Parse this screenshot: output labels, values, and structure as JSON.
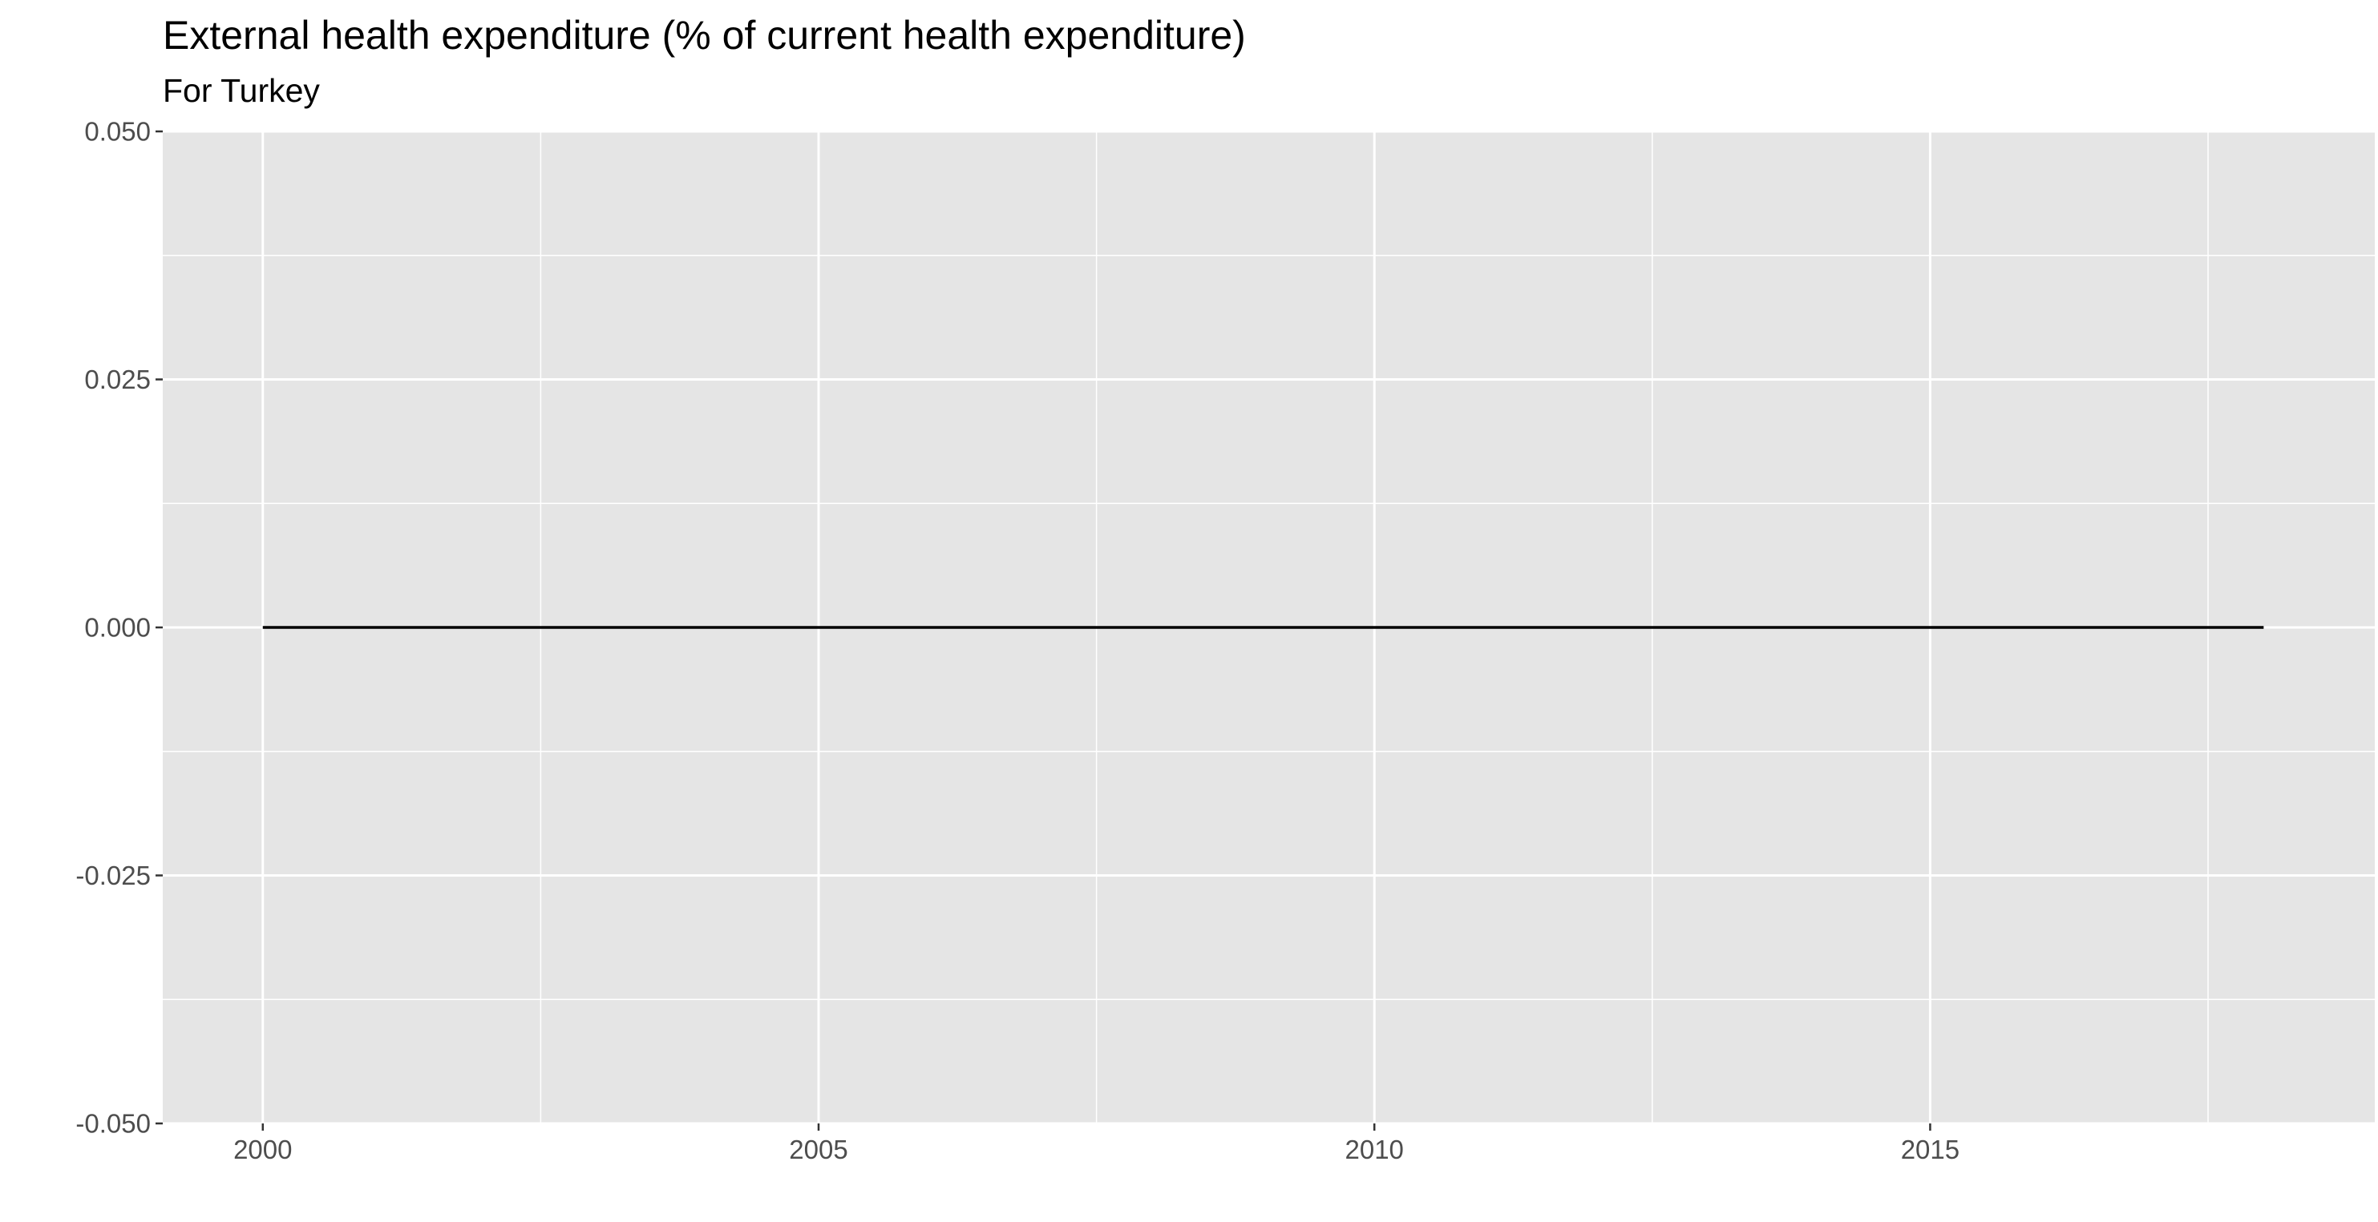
{
  "chart_data": {
    "type": "line",
    "title": "External health expenditure (% of current health expenditure)",
    "subtitle": "For Turkey",
    "xlabel": "",
    "ylabel": "",
    "x": [
      2000,
      2001,
      2002,
      2003,
      2004,
      2005,
      2006,
      2007,
      2008,
      2009,
      2010,
      2011,
      2012,
      2013,
      2014,
      2015,
      2016,
      2017,
      2018
    ],
    "series": [
      {
        "values": [
          0,
          0,
          0,
          0,
          0,
          0,
          0,
          0,
          0,
          0,
          0,
          0,
          0,
          0,
          0,
          0,
          0,
          0,
          0
        ]
      }
    ],
    "xlim": [
      1999.1,
      2019.0
    ],
    "ylim": [
      -0.05,
      0.05
    ],
    "x_ticks": [
      2000,
      2005,
      2010,
      2015
    ],
    "x_tick_labels": [
      "2000",
      "2005",
      "2010",
      "2015"
    ],
    "y_ticks": [
      -0.05,
      -0.025,
      0,
      0.025,
      0.05
    ],
    "y_tick_labels": [
      "-0.050",
      "-0.025",
      "0.000",
      "0.025",
      "0.050"
    ],
    "grid": true,
    "legend": "none",
    "colors": {
      "panel": "#e5e5e5",
      "grid": "#ffffff",
      "line": "#000000",
      "tick_text": "#4d4d4d"
    }
  }
}
